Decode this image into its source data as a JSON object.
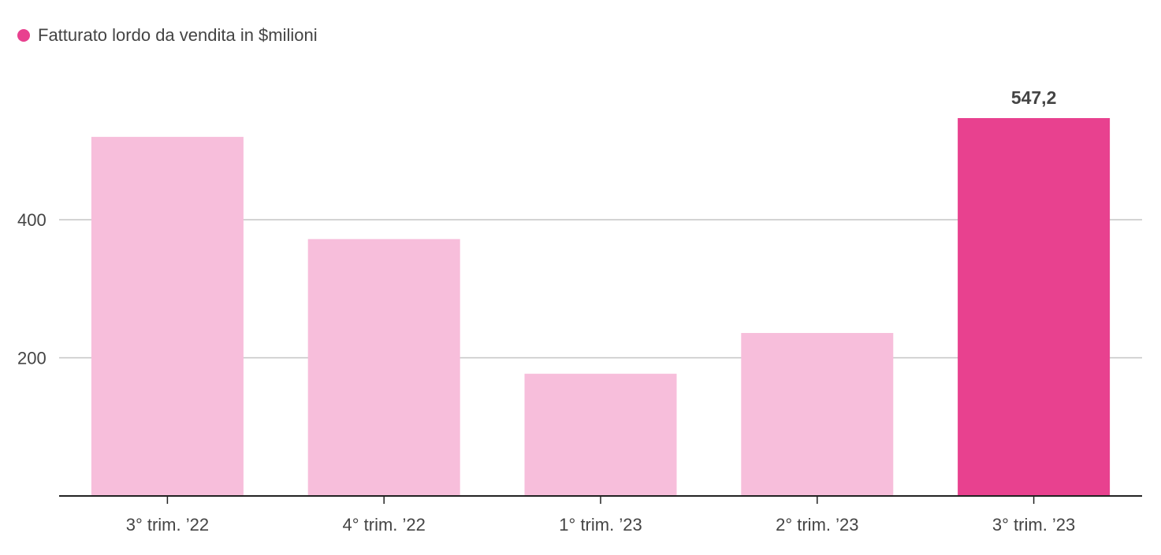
{
  "chart_data": {
    "type": "bar",
    "legend": {
      "label": "Fatturato lordo da vendita in $milioni",
      "color": "#E8418F"
    },
    "categories": [
      "3° trim. ’22",
      "4° trim. ’22",
      "1° trim. ’23",
      "2° trim. ’23",
      "3° trim. ’23"
    ],
    "series": [
      {
        "name": "Fatturato lordo da vendita in $milioni",
        "values": [
          520,
          372,
          177,
          236,
          547.2
        ]
      }
    ],
    "data_labels": [
      "",
      "",
      "",
      "",
      "547,2"
    ],
    "highlight_index": 4,
    "colors": {
      "bar": "#F7BEDB",
      "highlight": "#E8418F",
      "grid": "#C4C4C4",
      "axis": "#222222",
      "text": "#444444"
    },
    "y_ticks": [
      200,
      400
    ],
    "ylim": [
      0,
      547.2
    ],
    "grid": true,
    "xlabel": "",
    "ylabel": ""
  }
}
